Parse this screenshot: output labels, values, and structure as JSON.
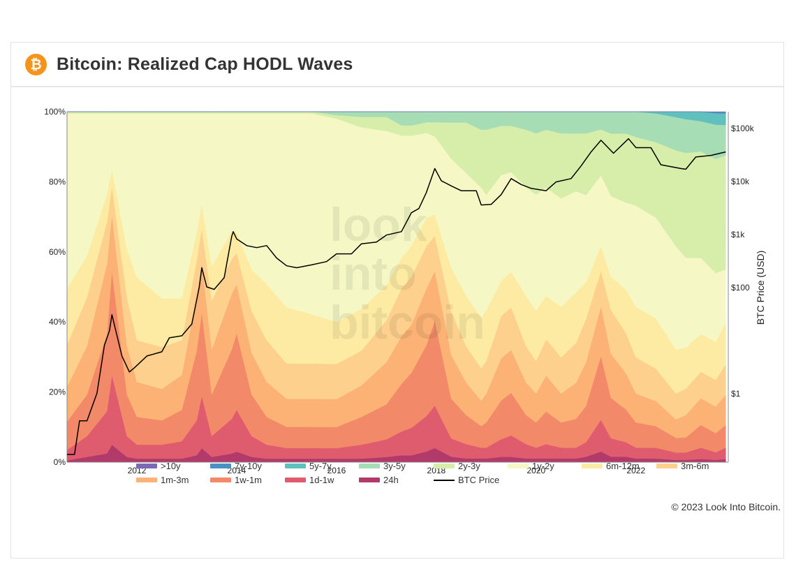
{
  "header": {
    "logo_glyph": "₿",
    "logo_icon": "bitcoin-logo-icon",
    "title": "Bitcoin: Realized Cap HODL Waves"
  },
  "footer": {
    "copyright": "© 2023 Look Into Bitcoin."
  },
  "watermark": [
    "look",
    "into",
    "bitcoin"
  ],
  "legend": [
    {
      "label": ">10y",
      "color": "#7a6ab5"
    },
    {
      "label": "7y-10y",
      "color": "#4a90c4"
    },
    {
      "label": "5y-7y",
      "color": "#5fc0bd"
    },
    {
      "label": "3y-5y",
      "color": "#a7ddb5"
    },
    {
      "label": "2y-3y",
      "color": "#d7eeab"
    },
    {
      "label": "1y-2y",
      "color": "#f5f8c4"
    },
    {
      "label": "6m-12m",
      "color": "#fdeba4"
    },
    {
      "label": "3m-6m",
      "color": "#fdd08e"
    },
    {
      "label": "1m-3m",
      "color": "#fbb274"
    },
    {
      "label": "1w-1m",
      "color": "#f28a6a"
    },
    {
      "label": "1d-1w",
      "color": "#de5c6e"
    },
    {
      "label": "24h",
      "color": "#b23a6a"
    },
    {
      "label": "BTC Price",
      "color": "#000000"
    }
  ],
  "chart_data": {
    "type": "area",
    "title": "Bitcoin: Realized Cap HODL Waves",
    "stacking": "percent",
    "x_ticks": [
      "2012",
      "2014",
      "2016",
      "2018",
      "2020",
      "2022"
    ],
    "y_left": {
      "ticks": [
        "0%",
        "20%",
        "40%",
        "60%",
        "80%",
        "100%"
      ],
      "range": [
        0,
        100
      ]
    },
    "y_right": {
      "label": "BTC Price (USD)",
      "scale": "log",
      "ticks": [
        "$1",
        "$100",
        "$1k",
        "$10k",
        "$100k"
      ],
      "range": [
        0.05,
        200000
      ]
    },
    "x": [
      2010.6,
      2011.0,
      2011.4,
      2011.5,
      2011.8,
      2012.0,
      2012.5,
      2012.9,
      2013.2,
      2013.3,
      2013.5,
      2013.9,
      2014.0,
      2014.3,
      2014.6,
      2015.0,
      2015.5,
      2016.0,
      2016.5,
      2017.0,
      2017.3,
      2017.5,
      2017.8,
      2017.97,
      2018.3,
      2018.6,
      2018.9,
      2019.0,
      2019.3,
      2019.5,
      2019.8,
      2020.0,
      2020.2,
      2020.5,
      2020.8,
      2021.0,
      2021.3,
      2021.5,
      2021.8,
      2022.0,
      2022.4,
      2022.8,
      2023.0,
      2023.3,
      2023.6,
      2023.8
    ],
    "series": [
      {
        "name": "24h",
        "values": [
          0.5,
          1.5,
          2.5,
          5,
          1.5,
          1,
          1,
          1,
          2,
          4,
          1.5,
          2.5,
          3,
          1.5,
          1,
          1,
          1,
          1,
          1,
          1.5,
          2,
          2,
          3,
          4,
          1.5,
          1,
          1,
          1,
          1.5,
          1.5,
          1,
          1,
          1,
          1,
          1,
          1.5,
          3,
          1.5,
          1.5,
          1,
          1,
          0.6,
          0.6,
          0.8,
          0.6,
          0.8
        ]
      },
      {
        "name": "1d-1w",
        "values": [
          3,
          6,
          12,
          20,
          6,
          4,
          4,
          5,
          10,
          15,
          6,
          10,
          12,
          6,
          4,
          3,
          3,
          3,
          4,
          5,
          7,
          8,
          10,
          12,
          5,
          4,
          3,
          3,
          5,
          6,
          4,
          3,
          4,
          3,
          3,
          4,
          9,
          5,
          4,
          3,
          3,
          2,
          2,
          3,
          2,
          3
        ]
      },
      {
        "name": "1w-1m",
        "values": [
          8,
          12,
          22,
          30,
          12,
          8,
          7,
          9,
          20,
          24,
          12,
          20,
          22,
          12,
          8,
          6,
          6,
          6,
          8,
          10,
          14,
          16,
          20,
          24,
          11,
          8,
          6,
          7,
          11,
          12,
          8,
          7,
          9,
          7,
          8,
          10,
          18,
          11,
          9,
          7,
          6,
          4,
          4,
          6,
          5,
          6
        ]
      },
      {
        "name": "1m-3m",
        "values": [
          10,
          14,
          20,
          16,
          14,
          10,
          9,
          10,
          16,
          14,
          13,
          16,
          14,
          12,
          10,
          8,
          8,
          8,
          9,
          12,
          14,
          14,
          16,
          14,
          12,
          9,
          7,
          8,
          12,
          12,
          9,
          8,
          10,
          8,
          10,
          12,
          14,
          12,
          10,
          8,
          7,
          5,
          6,
          7,
          7,
          8
        ]
      },
      {
        "name": "3m-6m",
        "values": [
          12,
          14,
          12,
          8,
          14,
          12,
          12,
          10,
          10,
          10,
          14,
          10,
          9,
          12,
          12,
          10,
          10,
          10,
          10,
          12,
          14,
          14,
          12,
          10,
          12,
          10,
          9,
          9,
          12,
          12,
          10,
          9,
          10,
          10,
          11,
          12,
          10,
          12,
          11,
          10,
          9,
          7,
          7,
          7,
          7,
          8
        ]
      },
      {
        "name": "6m-12m",
        "values": [
          16,
          12,
          8,
          5,
          14,
          18,
          14,
          12,
          8,
          7,
          10,
          8,
          6,
          12,
          16,
          16,
          14,
          12,
          12,
          10,
          9,
          9,
          8,
          6,
          12,
          14,
          14,
          14,
          10,
          10,
          14,
          14,
          12,
          14,
          14,
          10,
          7,
          9,
          12,
          14,
          14,
          12,
          11,
          10,
          10,
          11
        ]
      },
      {
        "name": "1y-2y",
        "values": [
          50,
          41,
          23,
          16,
          39,
          47,
          53,
          53,
          34,
          26,
          44,
          34,
          34,
          45,
          49,
          55,
          57,
          58,
          52,
          44,
          36,
          32,
          24,
          22,
          30,
          34,
          36,
          32,
          30,
          28,
          30,
          32,
          30,
          30,
          28,
          24,
          20,
          22,
          24,
          28,
          28,
          28,
          24,
          20,
          18,
          14
        ]
      },
      {
        "name": "2y-3y",
        "values": [
          0.5,
          0.5,
          0.5,
          0.5,
          0.5,
          0.5,
          0.5,
          0.5,
          0.5,
          0.5,
          0.5,
          0.5,
          0.5,
          0.5,
          0.5,
          0.5,
          0.5,
          1,
          3,
          4,
          3,
          3,
          3,
          4,
          10,
          14,
          16,
          18,
          14,
          13,
          16,
          17,
          16,
          18,
          16,
          17,
          13,
          17,
          19,
          19,
          21,
          26,
          28,
          28,
          30,
          30
        ]
      },
      {
        "name": "3y-5y",
        "values": [
          0,
          0,
          0,
          0,
          0,
          0,
          0,
          0,
          0,
          0,
          0,
          0,
          0,
          0,
          0,
          0,
          0,
          1,
          1.5,
          1.5,
          4,
          4,
          3,
          3,
          3,
          3,
          5,
          5,
          4,
          4,
          5,
          6,
          5,
          6,
          6,
          6,
          5,
          6,
          6,
          7,
          8,
          9,
          9,
          8,
          9,
          8
        ]
      },
      {
        "name": "5y-7y",
        "values": [
          0,
          0,
          0,
          0,
          0,
          0,
          0,
          0,
          0,
          0,
          0,
          0,
          0,
          0,
          0,
          0,
          0,
          0,
          0,
          0,
          0,
          0,
          0,
          0,
          0,
          0,
          0,
          0,
          0,
          0,
          0,
          0,
          0,
          0,
          0,
          0,
          0,
          0,
          0,
          0,
          0.5,
          1.5,
          2,
          2.5,
          3,
          3
        ]
      },
      {
        "name": "7y-10y",
        "values": [
          0,
          0,
          0,
          0,
          0,
          0,
          0,
          0,
          0,
          0,
          0,
          0,
          0,
          0,
          0,
          0,
          0,
          0,
          0,
          0,
          0,
          0,
          0,
          0,
          0,
          0,
          0,
          0,
          0,
          0,
          0,
          0,
          0,
          0,
          0,
          0,
          0,
          0,
          0,
          0,
          0,
          0,
          0,
          0,
          0.3,
          0.4
        ]
      },
      {
        "name": ">10y",
        "values": [
          0,
          0,
          0,
          0,
          0,
          0,
          0,
          0,
          0,
          0,
          0,
          0,
          0,
          0,
          0,
          0,
          0,
          0,
          0,
          0,
          0,
          0,
          0,
          0,
          0,
          0,
          0,
          0,
          0,
          0,
          0,
          0,
          0,
          0,
          0,
          0,
          0,
          0,
          0,
          0,
          0,
          0,
          0,
          0,
          0.1,
          0.1
        ]
      }
    ],
    "price_series": {
      "name": "BTC Price",
      "axis": "right",
      "x": [
        2010.6,
        2010.75,
        2010.85,
        2011.0,
        2011.2,
        2011.35,
        2011.45,
        2011.5,
        2011.7,
        2011.85,
        2011.95,
        2012.2,
        2012.5,
        2012.65,
        2012.9,
        2013.1,
        2013.25,
        2013.3,
        2013.4,
        2013.55,
        2013.75,
        2013.9,
        2013.93,
        2014.0,
        2014.2,
        2014.4,
        2014.6,
        2014.8,
        2015.0,
        2015.2,
        2015.5,
        2015.8,
        2016.0,
        2016.3,
        2016.5,
        2016.8,
        2017.0,
        2017.3,
        2017.5,
        2017.65,
        2017.8,
        2017.97,
        2018.1,
        2018.3,
        2018.5,
        2018.8,
        2018.9,
        2019.1,
        2019.3,
        2019.5,
        2019.7,
        2019.9,
        2020.2,
        2020.4,
        2020.7,
        2020.9,
        2021.1,
        2021.3,
        2021.55,
        2021.85,
        2022.0,
        2022.3,
        2022.5,
        2022.9,
        2023.0,
        2023.2,
        2023.5,
        2023.8
      ],
      "values": [
        0.07,
        0.07,
        0.3,
        0.3,
        1,
        8,
        15,
        30,
        5,
        2.5,
        3,
        5,
        6,
        11,
        12,
        20,
        100,
        230,
        100,
        90,
        150,
        900,
        1100,
        800,
        600,
        550,
        600,
        350,
        250,
        230,
        260,
        300,
        420,
        420,
        650,
        700,
        950,
        1100,
        2500,
        3000,
        6000,
        17000,
        10000,
        8000,
        6500,
        6500,
        3500,
        3600,
        5500,
        11000,
        8500,
        7200,
        6500,
        9500,
        11000,
        19000,
        35000,
        58000,
        33000,
        62000,
        42000,
        42000,
        20000,
        17000,
        16500,
        28000,
        30000,
        35000
      ]
    }
  }
}
